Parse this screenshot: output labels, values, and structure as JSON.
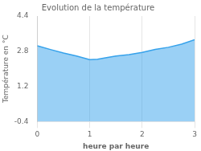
{
  "chart_data": {
    "type": "area",
    "title": "Evolution de la température",
    "xlabel": "heure par heure",
    "ylabel": "Température en °C",
    "x": [
      0,
      0.25,
      0.5,
      0.75,
      1.0,
      1.15,
      1.3,
      1.5,
      1.75,
      2.0,
      2.25,
      2.5,
      2.75,
      3.0
    ],
    "values": [
      3.05,
      2.88,
      2.72,
      2.58,
      2.42,
      2.44,
      2.5,
      2.58,
      2.65,
      2.75,
      2.88,
      2.98,
      3.12,
      3.32
    ],
    "xlim": [
      0,
      3
    ],
    "ylim": [
      -0.4,
      4.4
    ],
    "xticks": [
      0,
      1,
      2,
      3
    ],
    "yticks": [
      -0.4,
      1.2,
      2.8,
      4.4
    ],
    "grid": "x"
  }
}
